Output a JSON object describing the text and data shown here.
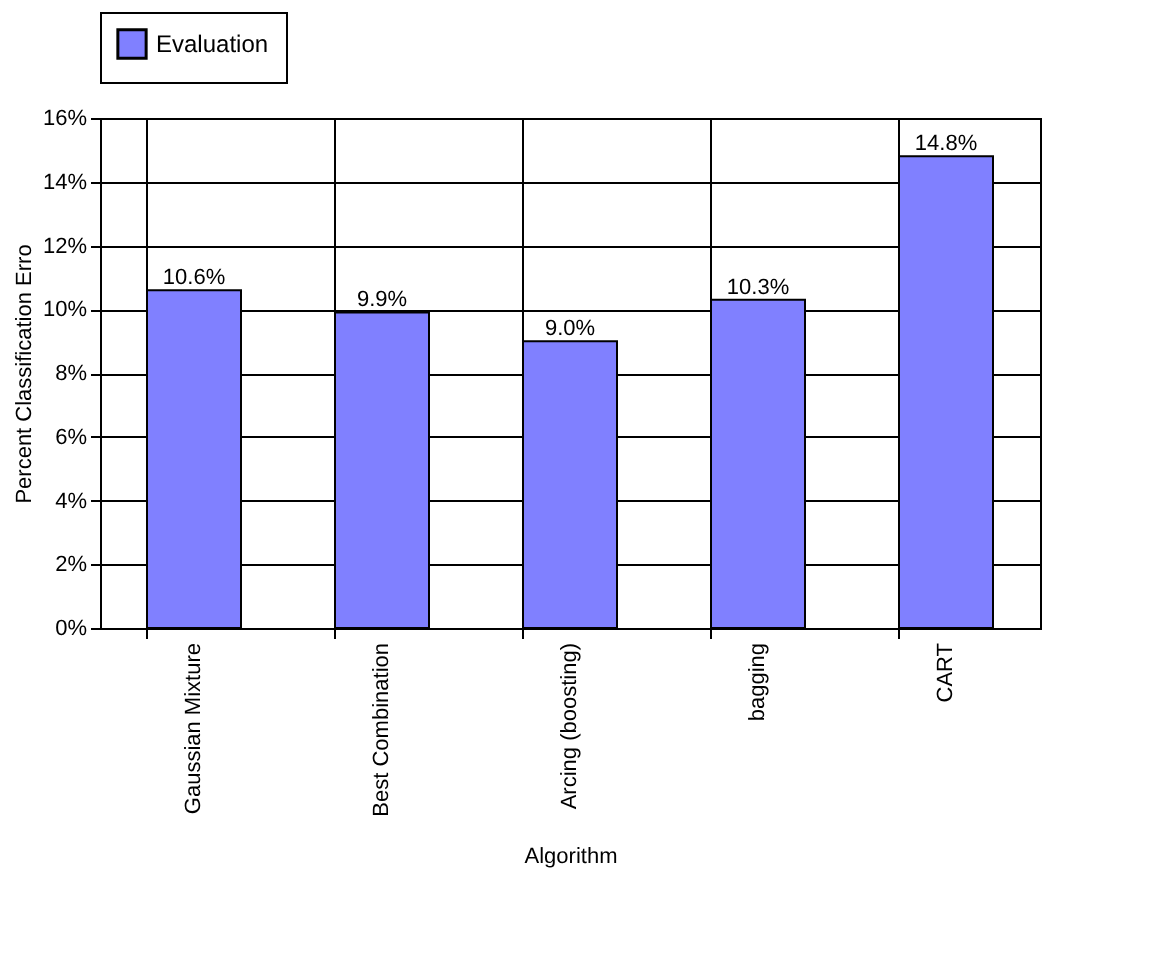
{
  "chart_data": {
    "type": "bar",
    "xlabel": "Algorithm",
    "ylabel": "Percent Classification Erro",
    "categories": [
      "Gaussian Mixture",
      "Best Combination",
      "Arcing (boosting)",
      "bagging",
      "CART"
    ],
    "series": [
      {
        "name": "Evaluation",
        "color": "#8080ff",
        "values": [
          10.6,
          9.9,
          9.0,
          10.3,
          14.8
        ],
        "value_labels": [
          "10.6%",
          "9.9%",
          "9.0%",
          "10.3%",
          "14.8%"
        ]
      }
    ],
    "ylim": [
      0,
      16
    ],
    "yticks": [
      {
        "value": 0,
        "label": "0%"
      },
      {
        "value": 2,
        "label": "2%"
      },
      {
        "value": 4,
        "label": "4%"
      },
      {
        "value": 6,
        "label": "6%"
      },
      {
        "value": 8,
        "label": "8%"
      },
      {
        "value": 10,
        "label": "10%"
      },
      {
        "value": 12,
        "label": "12%"
      },
      {
        "value": 14,
        "label": "14%"
      },
      {
        "value": 16,
        "label": "16%"
      }
    ],
    "grid": true,
    "legend": "top"
  }
}
